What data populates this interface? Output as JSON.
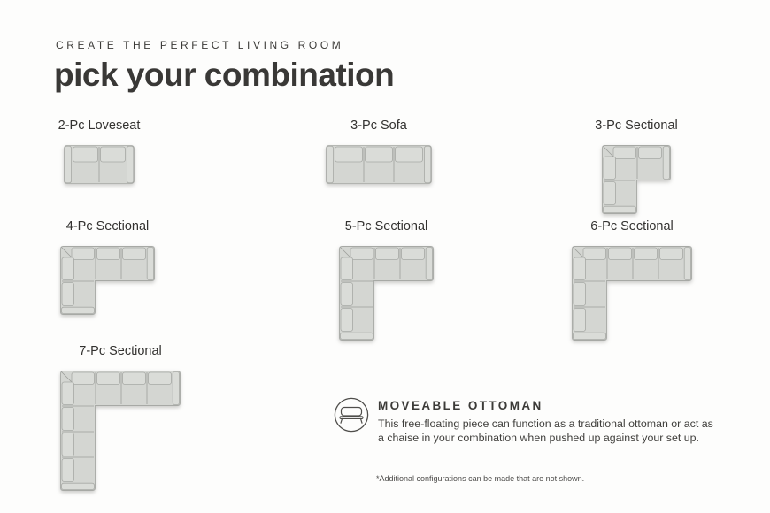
{
  "page": {
    "eyebrow": "CREATE THE PERFECT LIVING ROOM",
    "title": "pick your combination",
    "footnote": "*Additional configurations can be made that are not shown."
  },
  "colors": {
    "background": "#fdfdfc",
    "text_dark": "#3a3936",
    "sofa_fill": "#d4d6d2",
    "sofa_cushion": "#dadcd8",
    "sofa_stroke": "#a7a9a5",
    "sofa_seam": "#9c9e9a",
    "badge_stroke": "#4f4e4b"
  },
  "combinations": [
    {
      "id": "loveseat-2pc",
      "label": "2-Pc Loveseat",
      "shape": "straight",
      "seats": 2
    },
    {
      "id": "sofa-3pc",
      "label": "3-Pc Sofa",
      "shape": "straight",
      "seats": 3
    },
    {
      "id": "sectional-3pc",
      "label": "3-Pc Sectional",
      "shape": "sectional",
      "seats_right": 1,
      "seats_down": 1
    },
    {
      "id": "sectional-4pc",
      "label": "4-Pc Sectional",
      "shape": "sectional",
      "seats_right": 2,
      "seats_down": 1
    },
    {
      "id": "sectional-5pc",
      "label": "5-Pc Sectional",
      "shape": "sectional",
      "seats_right": 2,
      "seats_down": 2
    },
    {
      "id": "sectional-6pc",
      "label": "6-Pc Sectional",
      "shape": "sectional",
      "seats_right": 3,
      "seats_down": 2
    },
    {
      "id": "sectional-7pc",
      "label": "7-Pc Sectional",
      "shape": "sectional",
      "seats_right": 3,
      "seats_down": 3
    }
  ],
  "ottoman": {
    "heading": "MOVEABLE OTTOMAN",
    "icon": "ottoman-icon",
    "body_lines": [
      "This free-floating piece can function as a traditional ottoman or act as",
      "a chaise in your combination when pushed up against your set up."
    ]
  }
}
